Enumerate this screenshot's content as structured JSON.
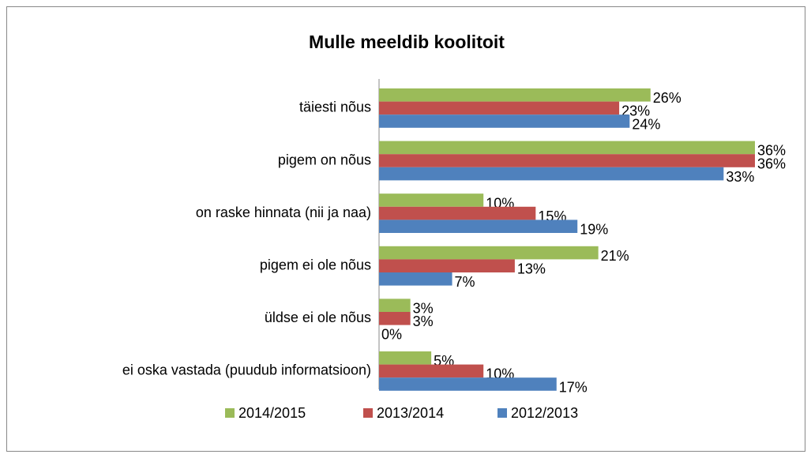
{
  "chart_data": {
    "type": "barh",
    "title": "Mulle meeldib koolitoit",
    "categories": [
      "täiesti nõus",
      "pigem on nõus",
      "on raske hinnata (nii ja naa)",
      "pigem ei ole nõus",
      "üldse ei ole nõus",
      "ei oska vastada (puudub informatsioon)"
    ],
    "series": [
      {
        "name": "2014/2015",
        "color": "#9bbb59",
        "values": [
          26,
          36,
          10,
          21,
          3,
          5
        ],
        "value_labels": [
          "26%",
          "36%",
          "10%",
          "21%",
          "3%",
          "5%"
        ]
      },
      {
        "name": "2013/2014",
        "color": "#c0504d",
        "values": [
          23,
          36,
          15,
          13,
          3,
          10
        ],
        "value_labels": [
          "23%",
          "36%",
          "15%",
          "13%",
          "3%",
          "10%"
        ]
      },
      {
        "name": "2012/2013",
        "color": "#4f81bd",
        "values": [
          24,
          33,
          19,
          7,
          0,
          17
        ],
        "value_labels": [
          "24%",
          "33%",
          "19%",
          "7%",
          "0%",
          "17%"
        ]
      }
    ],
    "legend": "bottom"
  }
}
